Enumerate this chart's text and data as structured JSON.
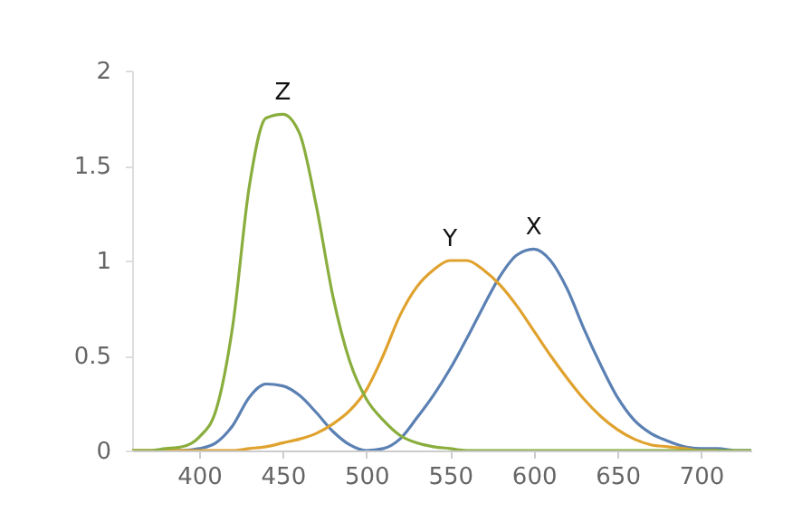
{
  "chart_data": {
    "type": "line",
    "x": [
      360,
      370,
      380,
      390,
      400,
      410,
      420,
      430,
      440,
      450,
      460,
      470,
      480,
      490,
      500,
      510,
      520,
      530,
      540,
      550,
      560,
      570,
      580,
      590,
      600,
      610,
      620,
      630,
      640,
      650,
      660,
      670,
      680,
      690,
      700,
      710,
      720,
      730
    ],
    "series": [
      {
        "name": "X",
        "color": "#5b80b3",
        "values": [
          null,
          null,
          0.0,
          0.0,
          0.01,
          0.04,
          0.13,
          0.28,
          0.35,
          0.34,
          0.29,
          0.2,
          0.1,
          0.03,
          0.0,
          0.01,
          0.06,
          0.17,
          0.29,
          0.43,
          0.59,
          0.76,
          0.92,
          1.03,
          1.06,
          1.0,
          0.85,
          0.64,
          0.45,
          0.28,
          0.16,
          0.09,
          0.05,
          0.02,
          0.01,
          0.01,
          0.0,
          0.0
        ]
      },
      {
        "name": "Y",
        "color": "#e0a22e",
        "values": [
          0,
          0,
          0.0,
          0.0,
          0.0,
          0.0,
          0.0,
          0.01,
          0.02,
          0.04,
          0.06,
          0.09,
          0.14,
          0.21,
          0.32,
          0.5,
          0.71,
          0.86,
          0.95,
          1.0,
          1.0,
          0.95,
          0.87,
          0.76,
          0.63,
          0.5,
          0.38,
          0.27,
          0.18,
          0.11,
          0.06,
          0.03,
          0.02,
          0.01,
          0.0,
          0.0,
          null,
          null
        ]
      },
      {
        "name": "Z",
        "color": "#8aae3e",
        "values": [
          0,
          0,
          0.01,
          0.02,
          0.07,
          0.21,
          0.65,
          1.39,
          1.75,
          1.77,
          1.67,
          1.29,
          0.81,
          0.47,
          0.27,
          0.16,
          0.08,
          0.04,
          0.02,
          0.01,
          0.0,
          0.0,
          0.0,
          0.0,
          0.0,
          0,
          0,
          0,
          0,
          0,
          0,
          0,
          0,
          0,
          0,
          0,
          0,
          0
        ]
      }
    ],
    "xlim": [
      360,
      730
    ],
    "xticks": [
      400,
      450,
      500,
      550,
      600,
      650,
      700
    ],
    "ylim": [
      0,
      2
    ],
    "yticks": [
      0,
      0.5,
      1,
      1.5,
      2
    ],
    "grid": false,
    "marker": "none",
    "line_style": "solid"
  }
}
